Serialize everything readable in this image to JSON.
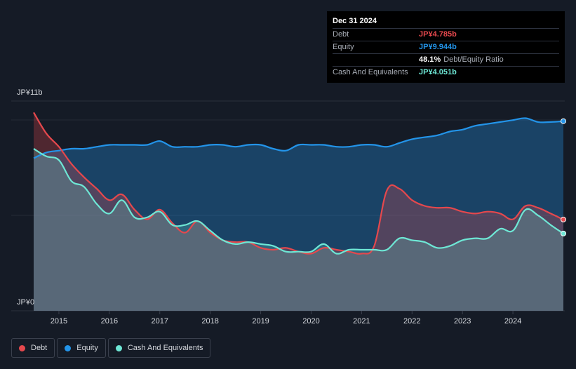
{
  "tooltip": {
    "date": "Dec 31 2024",
    "rows": [
      {
        "label": "Debt",
        "value": "JP¥4.785b",
        "color": "#e5484d"
      },
      {
        "label": "Equity",
        "value": "JP¥9.944b",
        "color": "#2394e9"
      },
      {
        "label": "",
        "value": "48.1%",
        "sub": "Debt/Equity Ratio",
        "color": "#ffffff"
      },
      {
        "label": "Cash And Equivalents",
        "value": "JP¥4.051b",
        "color": "#6ee7d5"
      }
    ]
  },
  "legend": [
    {
      "label": "Debt",
      "color": "#e5484d"
    },
    {
      "label": "Equity",
      "color": "#2394e9"
    },
    {
      "label": "Cash And Equivalents",
      "color": "#6ee7d5"
    }
  ],
  "chart_data": {
    "type": "area",
    "y_axis_labels": [
      "JP¥11b",
      "JP¥0"
    ],
    "x_tick_labels": [
      "2015",
      "2016",
      "2017",
      "2018",
      "2019",
      "2020",
      "2021",
      "2022",
      "2023",
      "2024"
    ],
    "x_range": [
      2014.5,
      2025.0
    ],
    "ylim": [
      0,
      11
    ],
    "grid": true,
    "legend_position": "bottom-left",
    "series": [
      {
        "name": "Debt",
        "color": "#e5484d",
        "x": [
          2014.5,
          2014.75,
          2015.0,
          2015.25,
          2015.5,
          2015.75,
          2016.0,
          2016.25,
          2016.5,
          2016.75,
          2017.0,
          2017.25,
          2017.5,
          2017.75,
          2018.0,
          2018.25,
          2018.5,
          2018.75,
          2019.0,
          2019.25,
          2019.5,
          2019.75,
          2020.0,
          2020.25,
          2020.5,
          2020.75,
          2021.0,
          2021.25,
          2021.5,
          2021.75,
          2022.0,
          2022.25,
          2022.5,
          2022.75,
          2023.0,
          2023.25,
          2023.5,
          2023.75,
          2024.0,
          2024.25,
          2024.5,
          2024.75,
          2025.0
        ],
        "values": [
          10.4,
          9.3,
          8.6,
          7.7,
          7.0,
          6.4,
          5.8,
          6.1,
          5.3,
          4.8,
          5.3,
          4.6,
          4.1,
          4.7,
          4.1,
          3.7,
          3.6,
          3.6,
          3.3,
          3.2,
          3.3,
          3.1,
          3.0,
          3.3,
          3.2,
          3.1,
          3.0,
          3.4,
          6.3,
          6.4,
          5.8,
          5.5,
          5.4,
          5.4,
          5.2,
          5.1,
          5.2,
          5.1,
          4.8,
          5.5,
          5.4,
          5.1,
          4.785
        ]
      },
      {
        "name": "Equity",
        "color": "#2394e9",
        "x": [
          2014.5,
          2014.75,
          2015.0,
          2015.25,
          2015.5,
          2015.75,
          2016.0,
          2016.25,
          2016.5,
          2016.75,
          2017.0,
          2017.25,
          2017.5,
          2017.75,
          2018.0,
          2018.25,
          2018.5,
          2018.75,
          2019.0,
          2019.25,
          2019.5,
          2019.75,
          2020.0,
          2020.25,
          2020.5,
          2020.75,
          2021.0,
          2021.25,
          2021.5,
          2021.75,
          2022.0,
          2022.25,
          2022.5,
          2022.75,
          2023.0,
          2023.25,
          2023.5,
          2023.75,
          2024.0,
          2024.25,
          2024.5,
          2024.75,
          2025.0
        ],
        "values": [
          8.0,
          8.3,
          8.4,
          8.5,
          8.5,
          8.6,
          8.7,
          8.7,
          8.7,
          8.7,
          8.9,
          8.6,
          8.6,
          8.6,
          8.7,
          8.7,
          8.6,
          8.7,
          8.7,
          8.5,
          8.4,
          8.7,
          8.7,
          8.7,
          8.6,
          8.6,
          8.7,
          8.7,
          8.6,
          8.8,
          9.0,
          9.1,
          9.2,
          9.4,
          9.5,
          9.7,
          9.8,
          9.9,
          10.0,
          10.1,
          9.9,
          9.9,
          9.944
        ]
      },
      {
        "name": "Cash And Equivalents",
        "color": "#6ee7d5",
        "x": [
          2014.5,
          2014.75,
          2015.0,
          2015.25,
          2015.5,
          2015.75,
          2016.0,
          2016.25,
          2016.5,
          2016.75,
          2017.0,
          2017.25,
          2017.5,
          2017.75,
          2018.0,
          2018.25,
          2018.5,
          2018.75,
          2019.0,
          2019.25,
          2019.5,
          2019.75,
          2020.0,
          2020.25,
          2020.5,
          2020.75,
          2021.0,
          2021.25,
          2021.5,
          2021.75,
          2022.0,
          2022.25,
          2022.5,
          2022.75,
          2023.0,
          2023.25,
          2023.5,
          2023.75,
          2024.0,
          2024.25,
          2024.5,
          2024.75,
          2025.0
        ],
        "values": [
          8.5,
          8.1,
          7.9,
          6.8,
          6.5,
          5.6,
          5.1,
          5.8,
          4.9,
          4.9,
          5.2,
          4.5,
          4.5,
          4.7,
          4.2,
          3.7,
          3.5,
          3.6,
          3.5,
          3.4,
          3.1,
          3.1,
          3.1,
          3.5,
          3.0,
          3.2,
          3.2,
          3.2,
          3.2,
          3.8,
          3.7,
          3.6,
          3.3,
          3.4,
          3.7,
          3.8,
          3.8,
          4.3,
          4.2,
          5.3,
          5.0,
          4.5,
          4.051
        ]
      }
    ]
  }
}
